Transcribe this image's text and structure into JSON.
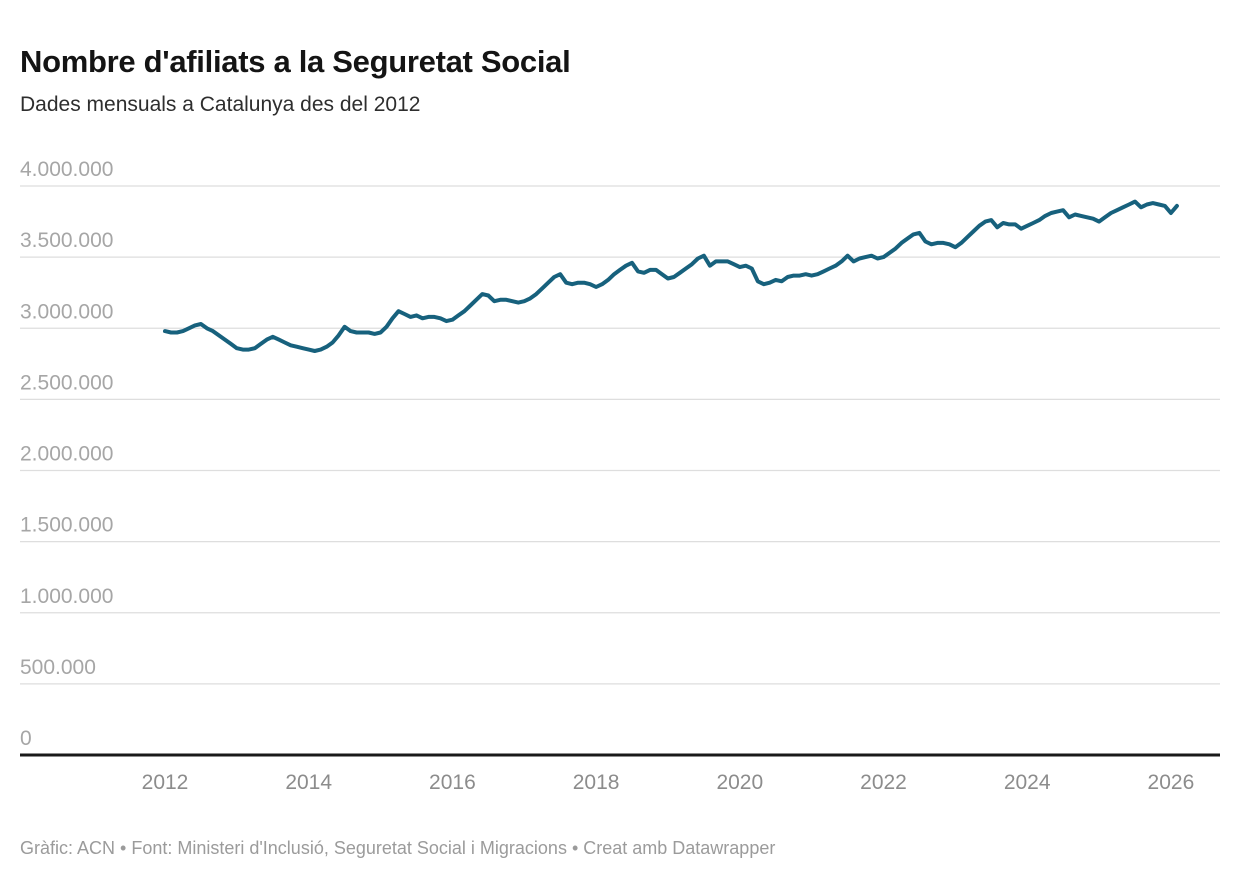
{
  "header": {
    "title": "Nombre d'afiliats a la Seguretat Social",
    "subtitle": "Dades mensuals a Catalunya des del 2012"
  },
  "footer": {
    "attribution": "Gràfic: ACN • Font: Ministeri d'Inclusió, Seguretat Social i Migracions • Creat amb Datawrapper"
  },
  "chart_data": {
    "type": "line",
    "title": "Nombre d'afiliats a la Seguretat Social",
    "subtitle": "Dades mensuals a Catalunya des del 2012",
    "frequency": "monthly",
    "start": "2012-01",
    "end": "2026-02",
    "ylim": [
      0,
      4000000
    ],
    "grid": "horizontal",
    "legend": "none",
    "colors": {
      "line": "#17617d",
      "grid": "#dedede",
      "baseline": "#1a1a1a",
      "ytick_label": "#a6a6a6",
      "xtick_label": "#8c8c8c"
    },
    "yticks": [
      {
        "value": 0,
        "label": "0"
      },
      {
        "value": 500000,
        "label": "500.000"
      },
      {
        "value": 1000000,
        "label": "1.000.000"
      },
      {
        "value": 1500000,
        "label": "1.500.000"
      },
      {
        "value": 2000000,
        "label": "2.000.000"
      },
      {
        "value": 2500000,
        "label": "2.500.000"
      },
      {
        "value": 3000000,
        "label": "3.000.000"
      },
      {
        "value": 3500000,
        "label": "3.500.000"
      },
      {
        "value": 4000000,
        "label": "4.000.000"
      }
    ],
    "xticks": [
      {
        "value": 2012,
        "label": "2012"
      },
      {
        "value": 2014,
        "label": "2014"
      },
      {
        "value": 2016,
        "label": "2016"
      },
      {
        "value": 2018,
        "label": "2018"
      },
      {
        "value": 2020,
        "label": "2020"
      },
      {
        "value": 2022,
        "label": "2022"
      },
      {
        "value": 2024,
        "label": "2024"
      },
      {
        "value": 2026,
        "label": "2026"
      }
    ],
    "series": [
      {
        "name": "Afiliats a la Seguretat Social",
        "values": [
          2980000,
          2970000,
          2970000,
          2980000,
          3000000,
          3020000,
          3030000,
          3000000,
          2980000,
          2950000,
          2920000,
          2890000,
          2860000,
          2850000,
          2850000,
          2860000,
          2890000,
          2920000,
          2940000,
          2920000,
          2900000,
          2880000,
          2870000,
          2860000,
          2850000,
          2840000,
          2850000,
          2870000,
          2900000,
          2950000,
          3010000,
          2980000,
          2970000,
          2970000,
          2970000,
          2960000,
          2970000,
          3010000,
          3070000,
          3120000,
          3100000,
          3080000,
          3090000,
          3070000,
          3080000,
          3080000,
          3070000,
          3050000,
          3060000,
          3090000,
          3120000,
          3160000,
          3200000,
          3240000,
          3230000,
          3190000,
          3200000,
          3200000,
          3190000,
          3180000,
          3190000,
          3210000,
          3240000,
          3280000,
          3320000,
          3360000,
          3380000,
          3320000,
          3310000,
          3320000,
          3320000,
          3310000,
          3290000,
          3310000,
          3340000,
          3380000,
          3410000,
          3440000,
          3460000,
          3400000,
          3390000,
          3410000,
          3410000,
          3380000,
          3350000,
          3360000,
          3390000,
          3420000,
          3450000,
          3490000,
          3510000,
          3440000,
          3470000,
          3470000,
          3470000,
          3450000,
          3430000,
          3440000,
          3420000,
          3330000,
          3310000,
          3320000,
          3340000,
          3330000,
          3360000,
          3370000,
          3370000,
          3380000,
          3370000,
          3380000,
          3400000,
          3420000,
          3440000,
          3470000,
          3510000,
          3470000,
          3490000,
          3500000,
          3510000,
          3490000,
          3500000,
          3530000,
          3560000,
          3600000,
          3630000,
          3660000,
          3670000,
          3610000,
          3590000,
          3600000,
          3600000,
          3590000,
          3570000,
          3600000,
          3640000,
          3680000,
          3720000,
          3750000,
          3760000,
          3710000,
          3740000,
          3730000,
          3730000,
          3700000,
          3720000,
          3740000,
          3760000,
          3790000,
          3810000,
          3820000,
          3830000,
          3780000,
          3800000,
          3790000,
          3780000,
          3770000,
          3750000,
          3780000,
          3810000,
          3830000,
          3850000,
          3870000,
          3890000,
          3850000,
          3870000,
          3880000,
          3870000,
          3860000,
          3810000,
          3860000
        ]
      }
    ]
  }
}
